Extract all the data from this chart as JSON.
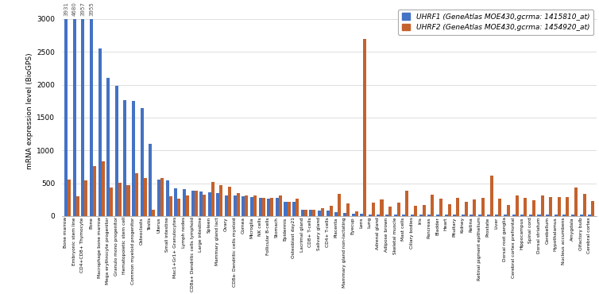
{
  "categories": [
    "Bone marrow",
    "Embryonic stem line",
    "CD4+CD8+ Thymocyte",
    "Bone",
    "Macrophage bone marrow",
    "Mega erythrocyte progenitor",
    "Granulo mono progenitor",
    "Hematopoietic stem cell",
    "Common myeloid progenitor",
    "Osteoclasts",
    "Testis",
    "Uterus",
    "Small intestine",
    "Mac1+Gr1+ Granulocytes",
    "Lymph nodes",
    "CD8a+ Dendritic cells lymphoid",
    "Large intestine",
    "Spleen",
    "Mammary gland lact",
    "Ovary",
    "CD8a- Dendritic cells myeloid",
    "Cornea",
    "Microglia",
    "NK cells",
    "Follicular B-cells",
    "Stomach",
    "Epidermis",
    "Osteoblast day21",
    "Lacrimal gland",
    "CD8+ T-cells",
    "Salivary gland",
    "CD4+ T-cells",
    "Placenta",
    "Mammary gland non-lactating",
    "Eyecup",
    "Lens",
    "Lung",
    "Adrenal gland",
    "Adipose brown",
    "Skeletal muscle",
    "Mast cells",
    "Ciliary bodies",
    "Iris",
    "Pancreas",
    "Bladder",
    "Heart",
    "Pituitary",
    "Kidney",
    "Retina",
    "Retinal pigment epithelium",
    "Prostate",
    "Liver",
    "Dorsal root ganglia",
    "Cerebral cortex prefrontal",
    "Hippocampus",
    "Spinal cord",
    "Dorsal striatum",
    "Cerebellum",
    "Hypothalamus",
    "Nucleus accumbens",
    "Amygdala",
    "Olfactory bulb",
    "Cerebral cortex"
  ],
  "uhrf1": [
    3000,
    3000,
    3000,
    3000,
    2550,
    2100,
    1980,
    1760,
    1750,
    1640,
    1100,
    560,
    540,
    420,
    410,
    390,
    370,
    360,
    350,
    310,
    310,
    300,
    290,
    280,
    270,
    280,
    220,
    220,
    90,
    90,
    80,
    80,
    60,
    50,
    40,
    30,
    25,
    25,
    25,
    25,
    25,
    25,
    25,
    25,
    25,
    25,
    25,
    25,
    25,
    25,
    25,
    25,
    25,
    25,
    25,
    25,
    25,
    25,
    25,
    25,
    25,
    25,
    25
  ],
  "uhrf2": [
    560,
    300,
    540,
    760,
    830,
    430,
    510,
    470,
    650,
    580,
    100,
    580,
    300,
    270,
    310,
    390,
    320,
    520,
    465,
    440,
    350,
    310,
    310,
    280,
    280,
    310,
    220,
    260,
    100,
    90,
    120,
    150,
    340,
    190,
    70,
    2700,
    200,
    250,
    140,
    200,
    380,
    160,
    170,
    320,
    260,
    180,
    280,
    210,
    250,
    280,
    620,
    260,
    170,
    310,
    280,
    240,
    310,
    290,
    290,
    290,
    430,
    340,
    230
  ],
  "top_labels": [
    "3931",
    "4680",
    "3957",
    "3955"
  ],
  "uhrf1_color": "#4472C4",
  "uhrf2_color": "#C4622D",
  "ylabel": "mRNA expression level (BioGPS)",
  "legend_uhrf1": "UHRF1 (GeneAtlas MOE430,gcrma: 1415810_at)",
  "legend_uhrf2": "UHRF2 (GeneAtlas MOE430,gcrma: 1454920_at)",
  "ylim": [
    0,
    3200
  ],
  "yticks": [
    0,
    500,
    1000,
    1500,
    2000,
    2500,
    3000
  ]
}
